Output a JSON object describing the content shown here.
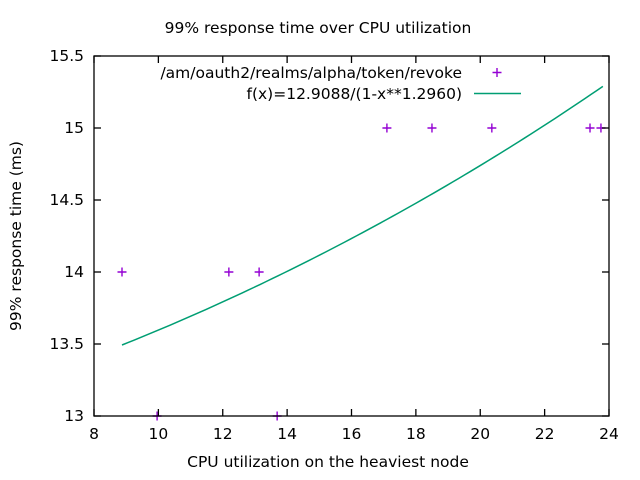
{
  "chart_data": {
    "type": "scatter",
    "title": "99% response time over CPU utilization",
    "xlabel": "CPU utilization on the heaviest node",
    "ylabel": "99% response time (ms)",
    "xlim": [
      8,
      24
    ],
    "ylim": [
      13,
      15.5
    ],
    "xticks": [
      8,
      10,
      12,
      14,
      16,
      18,
      20,
      22,
      24
    ],
    "yticks": [
      13,
      13.5,
      14,
      14.5,
      15,
      15.5
    ],
    "grid": false,
    "legend_position": "top-center-inside",
    "background_color": "#ffffff",
    "axis_color": "#000000",
    "series": [
      {
        "name": "/am/oauth2/realms/alpha/token/revoke",
        "type": "scatter",
        "marker": "plus",
        "color": "#9400d3",
        "points": [
          [
            8.87,
            14
          ],
          [
            9.96,
            13
          ],
          [
            12.19,
            14
          ],
          [
            13.13,
            14
          ],
          [
            13.69,
            13
          ],
          [
            17.1,
            15
          ],
          [
            18.5,
            15
          ],
          [
            20.36,
            15
          ],
          [
            23.41,
            15
          ],
          [
            23.75,
            15
          ]
        ]
      },
      {
        "name": "f(x)=12.9088/(1-x**1.2960)",
        "type": "line",
        "color": "#009e73",
        "function": {
          "formula": "12.9088/(1-(x/100)**1.2960)",
          "numerator": 12.9088,
          "exponent": 1.296,
          "x_divisor": 100
        },
        "x_range": [
          8.87,
          23.81
        ]
      }
    ]
  }
}
